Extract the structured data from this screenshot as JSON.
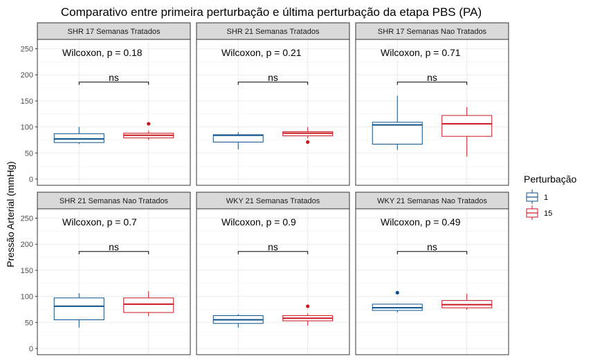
{
  "chart_data": {
    "type": "boxplot",
    "title": "Comparativo entre primeira perturbação e última perturbação da etapa PBS (PA)",
    "ylabel": "Pressão Arterial (mmHg)",
    "xlabel": "",
    "ylim": [
      -12,
      268
    ],
    "yticks": [
      0,
      50,
      100,
      150,
      200,
      250
    ],
    "grid": true,
    "legend": {
      "title": "Perturbação",
      "position": "right",
      "items": [
        {
          "label": "1",
          "color": "#0b4f8a"
        },
        {
          "label": "15",
          "color": "#c8161d"
        }
      ]
    },
    "panels": [
      {
        "label": "SHR 17 Semanas Tratados",
        "test_label": "Wilcoxon, p = 0.18",
        "sig_label": "ns",
        "bracket_y": 186,
        "groups": [
          {
            "name": "1",
            "min": 67,
            "q1": 70,
            "median": 77,
            "q3": 87,
            "max": 100,
            "outliers": []
          },
          {
            "name": "15",
            "min": 75,
            "q1": 79,
            "median": 84,
            "q3": 88,
            "max": 93,
            "outliers": [
              106
            ]
          }
        ]
      },
      {
        "label": "SHR 21 Semanas Tratados",
        "test_label": "Wilcoxon, p = 0.21",
        "sig_label": "ns",
        "bracket_y": 186,
        "groups": [
          {
            "name": "1",
            "min": 57,
            "q1": 71,
            "median": 84,
            "q3": 85,
            "max": 90,
            "outliers": []
          },
          {
            "name": "15",
            "min": 78,
            "q1": 83,
            "median": 88,
            "q3": 91,
            "max": 100,
            "outliers": [
              71
            ]
          }
        ]
      },
      {
        "label": "SHR 17 Semanas Nao Tratados",
        "test_label": "Wilcoxon, p = 0.71",
        "sig_label": "ns",
        "bracket_y": 186,
        "groups": [
          {
            "name": "1",
            "min": 56,
            "q1": 67,
            "median": 104,
            "q3": 109,
            "max": 160,
            "outliers": []
          },
          {
            "name": "15",
            "min": 43,
            "q1": 82,
            "median": 106,
            "q3": 122,
            "max": 138,
            "outliers": []
          }
        ]
      },
      {
        "label": "SHR 21 Semanas Nao Tratados",
        "test_label": "Wilcoxon, p = 0.7",
        "sig_label": "ns",
        "bracket_y": 186,
        "groups": [
          {
            "name": "1",
            "min": 40,
            "q1": 55,
            "median": 81,
            "q3": 97,
            "max": 106,
            "outliers": []
          },
          {
            "name": "15",
            "min": 62,
            "q1": 69,
            "median": 85,
            "q3": 97,
            "max": 110,
            "outliers": []
          }
        ]
      },
      {
        "label": "WKY 21 Semanas Tratados",
        "test_label": "Wilcoxon, p = 0.9",
        "sig_label": "ns",
        "bracket_y": 186,
        "groups": [
          {
            "name": "1",
            "min": 40,
            "q1": 48,
            "median": 55,
            "q3": 63,
            "max": 66,
            "outliers": []
          },
          {
            "name": "15",
            "min": 44,
            "q1": 53,
            "median": 58,
            "q3": 63,
            "max": 67,
            "outliers": [
              81
            ]
          }
        ]
      },
      {
        "label": "WKY 21 Semanas Nao Tratados",
        "test_label": "Wilcoxon, p = 0.49",
        "sig_label": "ns",
        "bracket_y": 186,
        "groups": [
          {
            "name": "1",
            "min": 69,
            "q1": 73,
            "median": 78,
            "q3": 85,
            "max": 86,
            "outliers": [
              107
            ]
          },
          {
            "name": "15",
            "min": 74,
            "q1": 78,
            "median": 84,
            "q3": 92,
            "max": 105,
            "outliers": []
          }
        ]
      }
    ]
  }
}
